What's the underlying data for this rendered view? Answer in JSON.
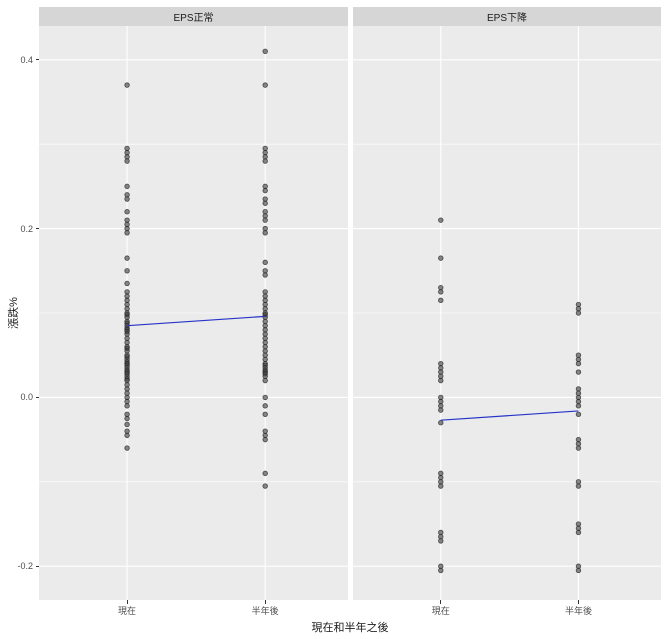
{
  "chart_data": {
    "type": "scatter",
    "title": "",
    "xlabel": "現在和半年之後",
    "ylabel": "漲跌%",
    "x_categories": [
      "現在",
      "半年後"
    ],
    "ylim": [
      -0.24,
      0.44
    ],
    "yticks": [
      -0.2,
      0.0,
      0.2,
      0.4
    ],
    "ytick_labels": [
      "-0.2",
      "0.0",
      "0.2",
      "0.4"
    ],
    "yticks_minor": [
      -0.1,
      0.1,
      0.3
    ],
    "grid": true,
    "legend_position": "none",
    "colors": {
      "panel_bg": "#EBEBEB",
      "strip_bg": "#D6D6D6",
      "grid": "#FFFFFF",
      "point": "#3F3F3F",
      "trend_line": "#2633C8",
      "axis_text": "#4D4D4D",
      "title_text": "#1A1A1A"
    },
    "facets": [
      {
        "label": "EPS正常",
        "columns": [
          {
            "category": "現在",
            "values": [
              0.37,
              0.295,
              0.29,
              0.285,
              0.28,
              0.25,
              0.24,
              0.235,
              0.22,
              0.21,
              0.205,
              0.2,
              0.195,
              0.165,
              0.15,
              0.135,
              0.125,
              0.12,
              0.115,
              0.11,
              0.105,
              0.1,
              0.098,
              0.095,
              0.09,
              0.088,
              0.085,
              0.082,
              0.08,
              0.078,
              0.075,
              0.07,
              0.065,
              0.06,
              0.058,
              0.055,
              0.05,
              0.048,
              0.045,
              0.042,
              0.04,
              0.038,
              0.035,
              0.032,
              0.03,
              0.028,
              0.025,
              0.022,
              0.02,
              0.015,
              0.01,
              0.005,
              0.0,
              -0.005,
              -0.01,
              -0.02,
              -0.025,
              -0.032,
              -0.04,
              -0.045,
              -0.06
            ]
          },
          {
            "category": "半年後",
            "values": [
              0.41,
              0.37,
              0.295,
              0.29,
              0.285,
              0.28,
              0.25,
              0.245,
              0.235,
              0.23,
              0.22,
              0.215,
              0.21,
              0.2,
              0.195,
              0.16,
              0.15,
              0.145,
              0.125,
              0.12,
              0.115,
              0.11,
              0.105,
              0.1,
              0.098,
              0.095,
              0.09,
              0.085,
              0.08,
              0.075,
              0.07,
              0.065,
              0.06,
              0.055,
              0.05,
              0.045,
              0.04,
              0.038,
              0.035,
              0.032,
              0.03,
              0.028,
              0.025,
              0.02,
              0.0,
              -0.01,
              -0.02,
              -0.04,
              -0.045,
              -0.05,
              -0.09,
              -0.105
            ]
          }
        ],
        "trend": {
          "y_start": 0.085,
          "y_end": 0.096
        }
      },
      {
        "label": "EPS下降",
        "columns": [
          {
            "category": "現在",
            "values": [
              0.21,
              0.165,
              0.13,
              0.125,
              0.115,
              0.04,
              0.035,
              0.03,
              0.025,
              0.02,
              0.0,
              -0.005,
              -0.01,
              -0.015,
              -0.03,
              -0.09,
              -0.095,
              -0.1,
              -0.105,
              -0.16,
              -0.165,
              -0.17,
              -0.2,
              -0.205
            ]
          },
          {
            "category": "半年後",
            "values": [
              0.11,
              0.105,
              0.1,
              0.05,
              0.045,
              0.04,
              0.03,
              0.01,
              0.005,
              0.0,
              -0.005,
              -0.01,
              -0.02,
              -0.05,
              -0.055,
              -0.06,
              -0.1,
              -0.105,
              -0.15,
              -0.155,
              -0.16,
              -0.2,
              -0.205
            ]
          }
        ],
        "trend": {
          "y_start": -0.027,
          "y_end": -0.016
        }
      }
    ]
  }
}
